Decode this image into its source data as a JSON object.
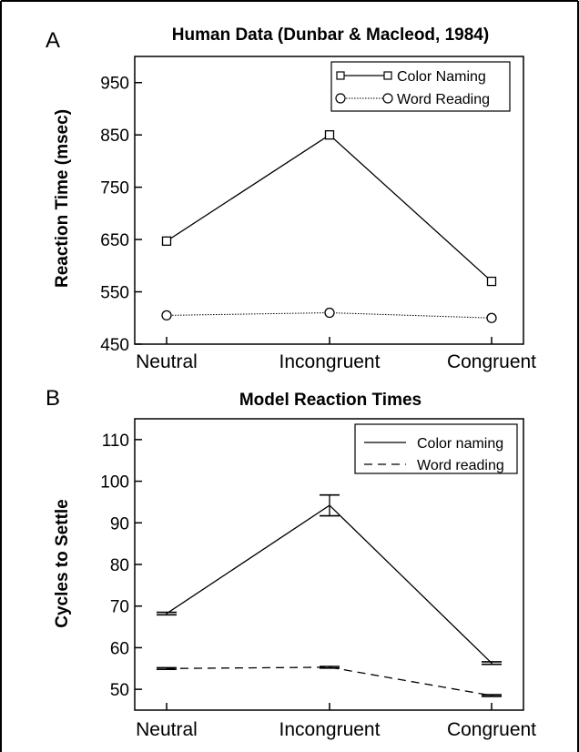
{
  "chart_data": [
    {
      "panel_label": "A",
      "type": "line",
      "title": "Human Data (Dunbar & Macleod, 1984)",
      "xlabel": "",
      "ylabel": "Reaction Time (msec)",
      "categories": [
        "Neutral",
        "Incongruent",
        "Congruent"
      ],
      "yticks": [
        450,
        550,
        650,
        750,
        850,
        950
      ],
      "ylim": [
        450,
        1000
      ],
      "grid": false,
      "legend": "top-right",
      "series": [
        {
          "name": "Color Naming",
          "values": [
            647,
            850,
            570
          ],
          "marker": "square",
          "line": "solid"
        },
        {
          "name": "Word Reading",
          "values": [
            505,
            510,
            500
          ],
          "marker": "circle",
          "line": "dotted"
        }
      ]
    },
    {
      "panel_label": "B",
      "type": "line",
      "title": "Model Reaction Times",
      "xlabel": "",
      "ylabel": "Cycles to Settle",
      "categories": [
        "Neutral",
        "Incongruent",
        "Congruent"
      ],
      "yticks": [
        50,
        60,
        70,
        80,
        90,
        100,
        110
      ],
      "ylim": [
        45,
        115
      ],
      "grid": false,
      "legend": "top-right",
      "series": [
        {
          "name": "Color naming",
          "values": [
            68.2,
            94.2,
            56.3
          ],
          "errors": [
            0.3,
            2.5,
            0.3
          ],
          "line": "solid"
        },
        {
          "name": "Word reading",
          "values": [
            55.0,
            55.3,
            48.5
          ],
          "errors": [
            0.2,
            0.2,
            0.2
          ],
          "line": "dashed"
        }
      ]
    }
  ]
}
